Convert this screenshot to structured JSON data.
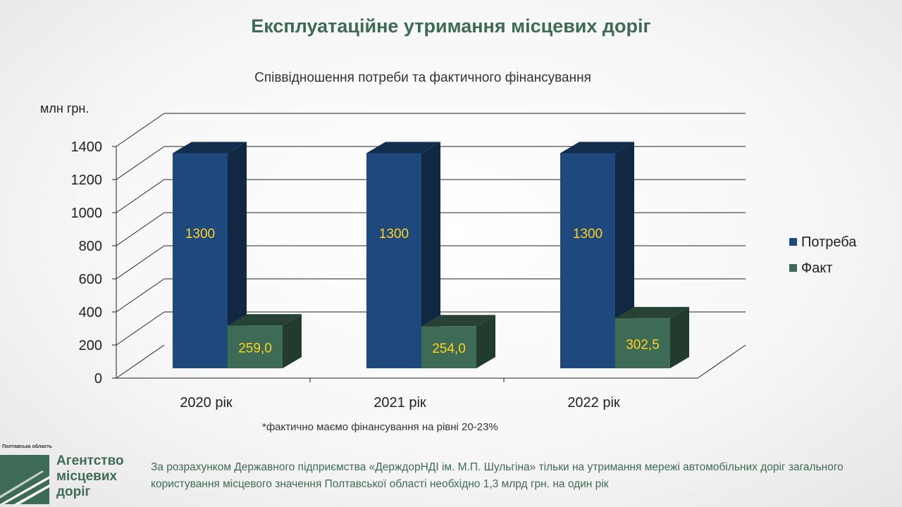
{
  "header": {
    "title": "Експлуатаційне утримання місцевих доріг",
    "subtitle": "Співвідношення  потреби та фактичного фінансування"
  },
  "chart_data": {
    "type": "bar",
    "style": "3d-clustered-column",
    "ylabel": "млн грн.",
    "ylim": [
      0,
      1400
    ],
    "yticks": [
      0,
      200,
      400,
      600,
      800,
      1000,
      1200,
      1400
    ],
    "categories": [
      "2020 рік",
      "2021 рік",
      "2022 рік"
    ],
    "series": [
      {
        "name": "Потреба",
        "values": [
          1300,
          1300,
          1300
        ],
        "labels": [
          "1300",
          "1300",
          "1300"
        ],
        "color": "#1f497d"
      },
      {
        "name": "Факт",
        "values": [
          259.0,
          254.0,
          302.5
        ],
        "labels": [
          "259,0",
          "254,0",
          "302,5"
        ],
        "color": "#3d6b56"
      }
    ],
    "data_label_color": "#ffd21f",
    "legend_position": "right",
    "grid": true
  },
  "footnote": "*фактично маємо фінансування на рівні 20-23%",
  "logo": {
    "region": "Полтавська область",
    "name": "Агентство місцевих доріг"
  },
  "bottom_note": "За розрахунком Державного підприємства «ДерждорНДІ ім. М.П. Шульгіна» тільки на утримання мережі автомобільних доріг загального користування місцевого значення Полтавської області необхідно 1,3 млрд грн. на один рік",
  "colors": {
    "accent": "#3d6b56",
    "bar_primary": "#1f497d",
    "bar_secondary": "#3d6b56"
  }
}
